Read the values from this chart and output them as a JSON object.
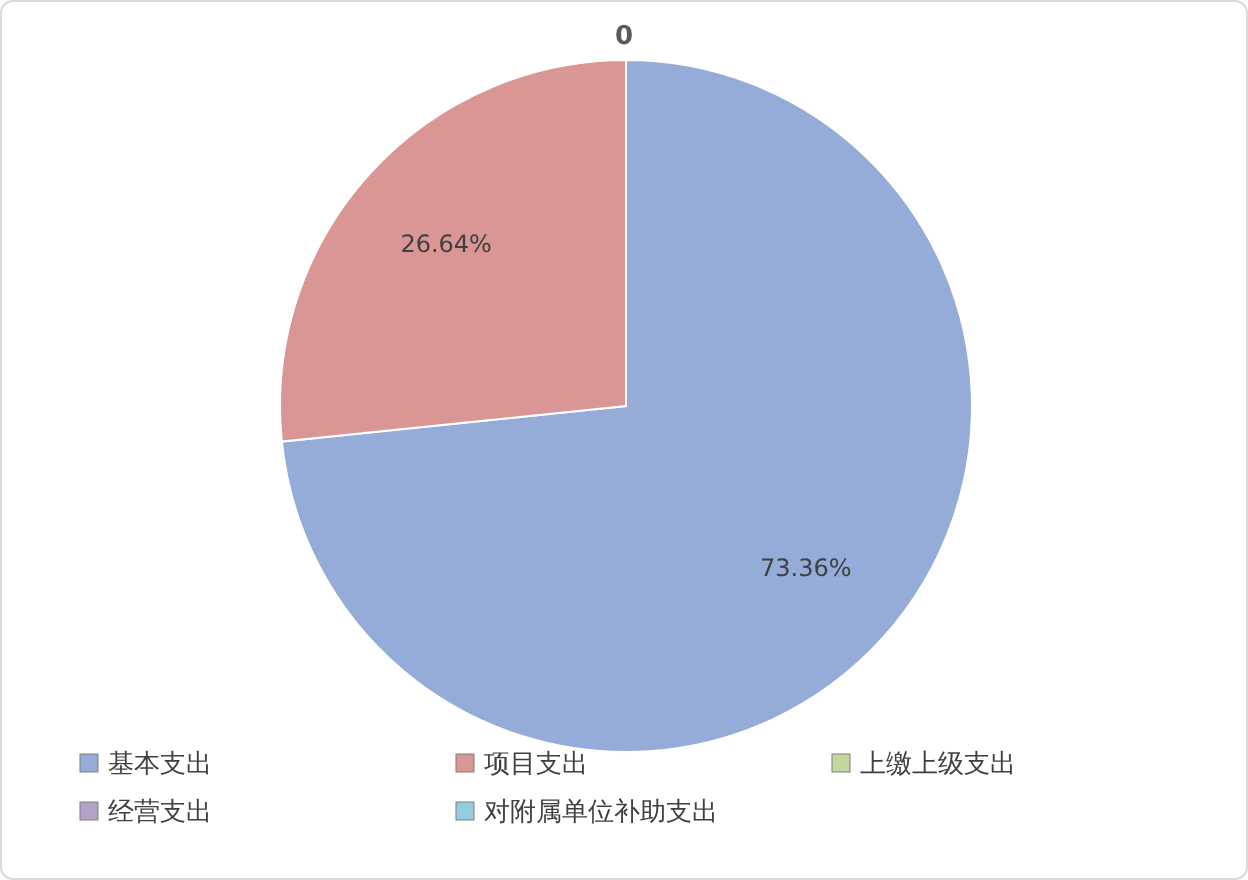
{
  "chart_data": {
    "type": "pie",
    "title": "0",
    "categories": [
      "基本支出",
      "项目支出",
      "上缴上级支出",
      "经营支出",
      "对附属单位补助支出"
    ],
    "values": [
      73.36,
      26.64,
      0,
      0,
      0
    ],
    "colors": [
      "#95acd8",
      "#d99694",
      "#c3d69b",
      "#b3a2c7",
      "#93cddd"
    ],
    "value_labels": [
      "73.36%",
      "26.64%",
      null,
      null,
      null
    ],
    "legend": "bottom"
  }
}
